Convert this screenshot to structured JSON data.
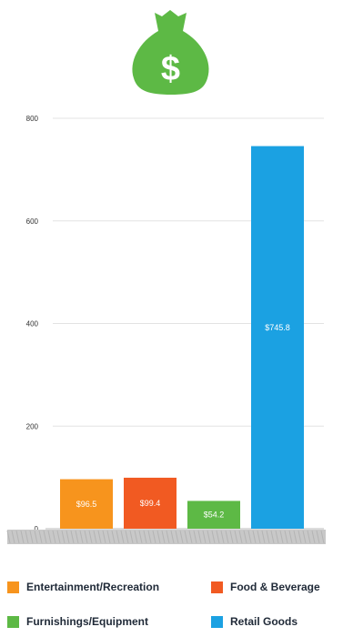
{
  "chart_data": {
    "type": "bar",
    "title": "",
    "xlabel": "",
    "ylabel": "",
    "ylim": [
      0,
      800
    ],
    "yticks": [
      "0",
      "200",
      "400",
      "600",
      "800"
    ],
    "categories": [
      "Entertainment/Recreation",
      "Food & Beverage",
      "Furnishings/Equipment",
      "Retail Goods"
    ],
    "values": [
      96.5,
      99.4,
      54.2,
      745.8
    ],
    "data_labels": [
      "$96.5",
      "$99.4",
      "$54.2",
      "$745.8"
    ],
    "colors": [
      "#F7941D",
      "#F15A22",
      "#5DB945",
      "#1BA1E2"
    ],
    "grid": true,
    "legend_position": "bottom",
    "legend": [
      {
        "label": "Entertainment/Recreation",
        "color": "#F7941D"
      },
      {
        "label": "Food & Beverage",
        "color": "#F15A22"
      },
      {
        "label": "Furnishings/Equipment",
        "color": "#5DB945"
      },
      {
        "label": "Retail Goods",
        "color": "#1BA1E2"
      }
    ]
  },
  "icon": {
    "name": "money-bag-icon",
    "symbol": "$",
    "color": "#5DB945"
  }
}
